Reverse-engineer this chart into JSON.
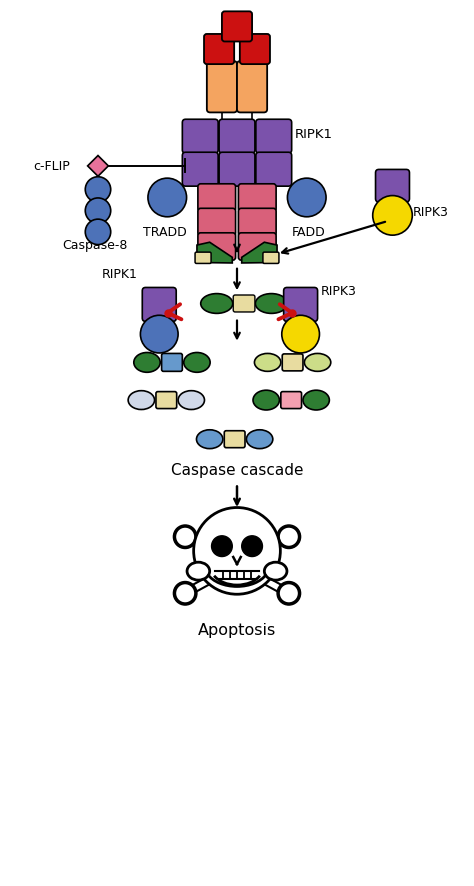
{
  "fig_width": 4.74,
  "fig_height": 8.87,
  "bg_color": "#ffffff",
  "xlim": [
    0,
    10
  ],
  "ylim": [
    0,
    18.7
  ],
  "colors": {
    "tnf_red": "#cc1111",
    "receptor_orange": "#f4a460",
    "purple": "#7b52ab",
    "pink": "#d9607a",
    "blue_circle": "#4d72b8",
    "yellow": "#f5d800",
    "dark_green": "#2e7d32",
    "light_green": "#a8cc66",
    "beige": "#e8dca0",
    "cflip_pink": "#e8729a",
    "red_scissors": "#cc1111",
    "white": "#ffffff",
    "black": "#000000",
    "blue_oval": "#6699cc",
    "light_yellow_oval": "#ccdd88",
    "light_blue_oval": "#aabbdd",
    "pink_center": "#f4a0b0"
  },
  "labels": {
    "ripk1_top": "RIPK1",
    "ripk3_right": "RIPK3",
    "cflip": "c-FLIP",
    "tradd": "TRADD",
    "fadd": "FADD",
    "caspase8": "Caspase-8",
    "ripk1_mid": "RIPK1",
    "ripk3_mid": "RIPK3",
    "caspase_cascade": "Caspase cascade",
    "apoptosis": "Apoptosis"
  }
}
